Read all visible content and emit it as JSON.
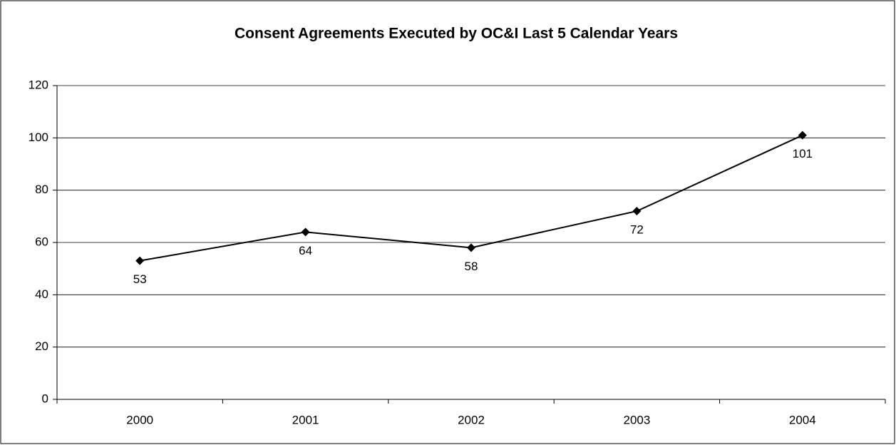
{
  "chart_data": {
    "type": "line",
    "title": "Consent Agreements Executed by OC&I Last 5 Calendar Years",
    "categories": [
      "2000",
      "2001",
      "2002",
      "2003",
      "2004"
    ],
    "values": [
      53,
      64,
      58,
      72,
      101
    ],
    "color": "#000000",
    "ylim": [
      0,
      120
    ],
    "yticks": [
      0,
      20,
      40,
      60,
      80,
      100,
      120
    ],
    "grid": true
  }
}
